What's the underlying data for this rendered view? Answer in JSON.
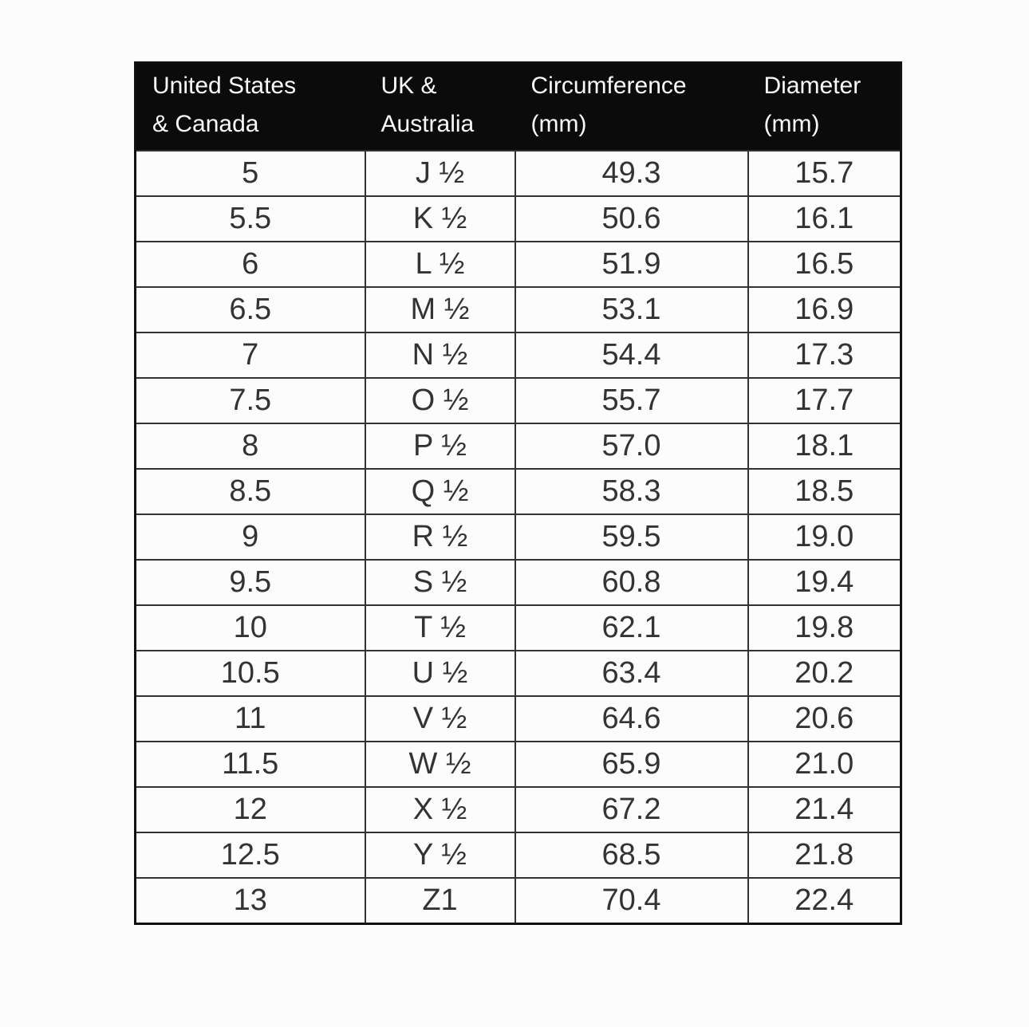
{
  "chart_data": {
    "type": "table",
    "columns": [
      "United States & Canada",
      "UK & Australia",
      "Circumference (mm)",
      "Diameter (mm)"
    ],
    "header_lines": [
      [
        "United States",
        "& Canada"
      ],
      [
        "UK &",
        "Australia"
      ],
      [
        "Circumference",
        "(mm)"
      ],
      [
        "Diameter",
        "(mm)"
      ]
    ],
    "rows": [
      [
        "5",
        "J ½",
        "49.3",
        "15.7"
      ],
      [
        "5.5",
        "K ½",
        "50.6",
        "16.1"
      ],
      [
        "6",
        "L ½",
        "51.9",
        "16.5"
      ],
      [
        "6.5",
        "M ½",
        "53.1",
        "16.9"
      ],
      [
        "7",
        "N ½",
        "54.4",
        "17.3"
      ],
      [
        "7.5",
        "O ½",
        "55.7",
        "17.7"
      ],
      [
        "8",
        "P ½",
        "57.0",
        "18.1"
      ],
      [
        "8.5",
        "Q ½",
        "58.3",
        "18.5"
      ],
      [
        "9",
        "R ½",
        "59.5",
        "19.0"
      ],
      [
        "9.5",
        "S ½",
        "60.8",
        "19.4"
      ],
      [
        "10",
        "T ½",
        "62.1",
        "19.8"
      ],
      [
        "10.5",
        "U ½",
        "63.4",
        "20.2"
      ],
      [
        "11",
        "V ½",
        "64.6",
        "20.6"
      ],
      [
        "11.5",
        "W ½",
        "65.9",
        "21.0"
      ],
      [
        "12",
        "X ½",
        "67.2",
        "21.4"
      ],
      [
        "12.5",
        "Y ½",
        "68.5",
        "21.8"
      ],
      [
        "13",
        "Z1",
        "70.4",
        "22.4"
      ]
    ]
  },
  "colors": {
    "page_bg": "#fcfcfc",
    "header_bg": "#0b0b0b",
    "header_text": "#fafafa",
    "body_text": "#333333",
    "grid_border": "#333333",
    "outer_border": "#111111"
  }
}
